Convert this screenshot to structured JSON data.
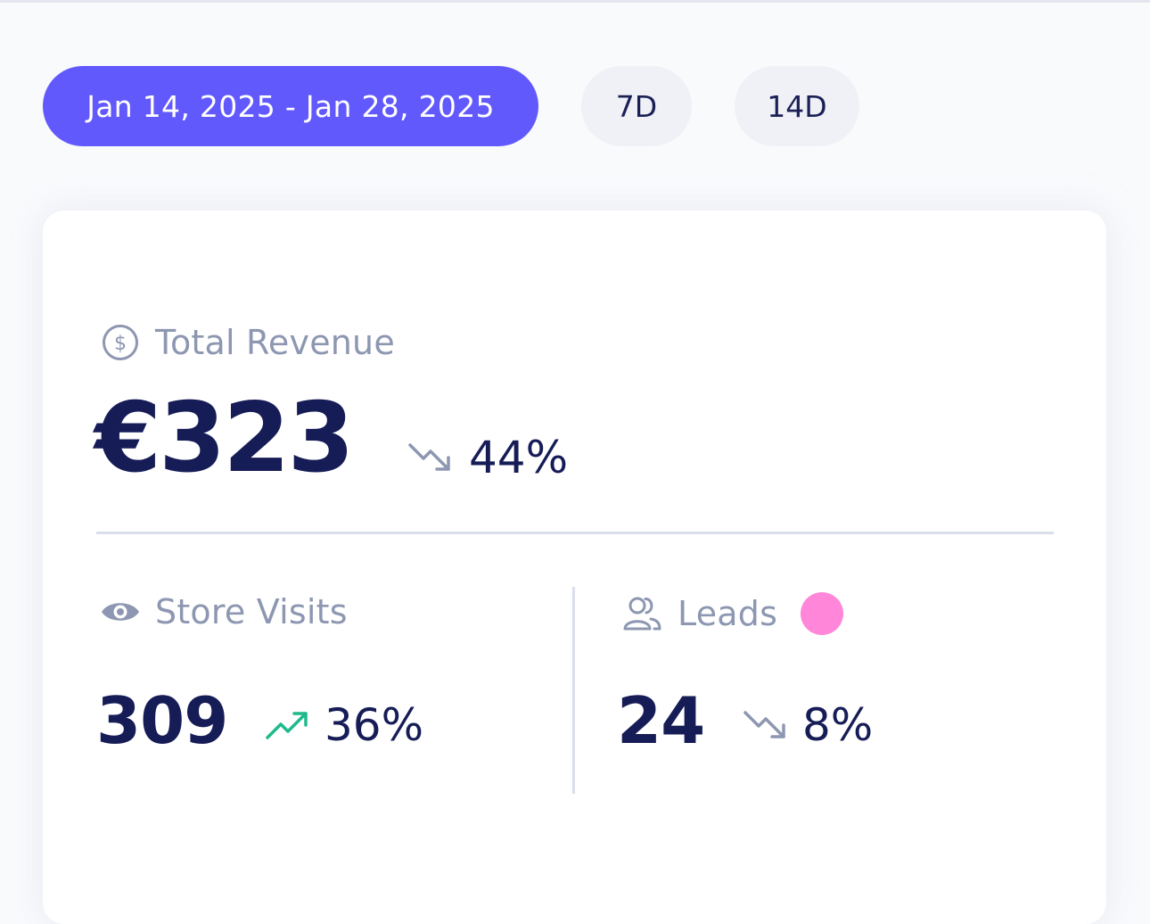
{
  "filters": {
    "date_range": "Jan 14, 2025 - Jan 28, 2025",
    "options": [
      "7D",
      "14D"
    ],
    "active_color": "#6259fd"
  },
  "revenue": {
    "label": "Total Revenue",
    "value": "€323",
    "change": "44%",
    "trend": "down",
    "icon": "dollar-circle-icon"
  },
  "store_visits": {
    "label": "Store Visits",
    "value": "309",
    "change": "36%",
    "trend": "up",
    "icon": "eye-icon",
    "trend_color": "#1fb98c"
  },
  "leads": {
    "label": "Leads",
    "value": "24",
    "change": "8%",
    "trend": "down",
    "icon": "users-icon",
    "indicator_color": "#ff86d8"
  },
  "colors": {
    "primary_text": "#161c56",
    "muted_text": "#8d97b1",
    "trend_down": "#8d97b1",
    "trend_up": "#1fb98c"
  }
}
